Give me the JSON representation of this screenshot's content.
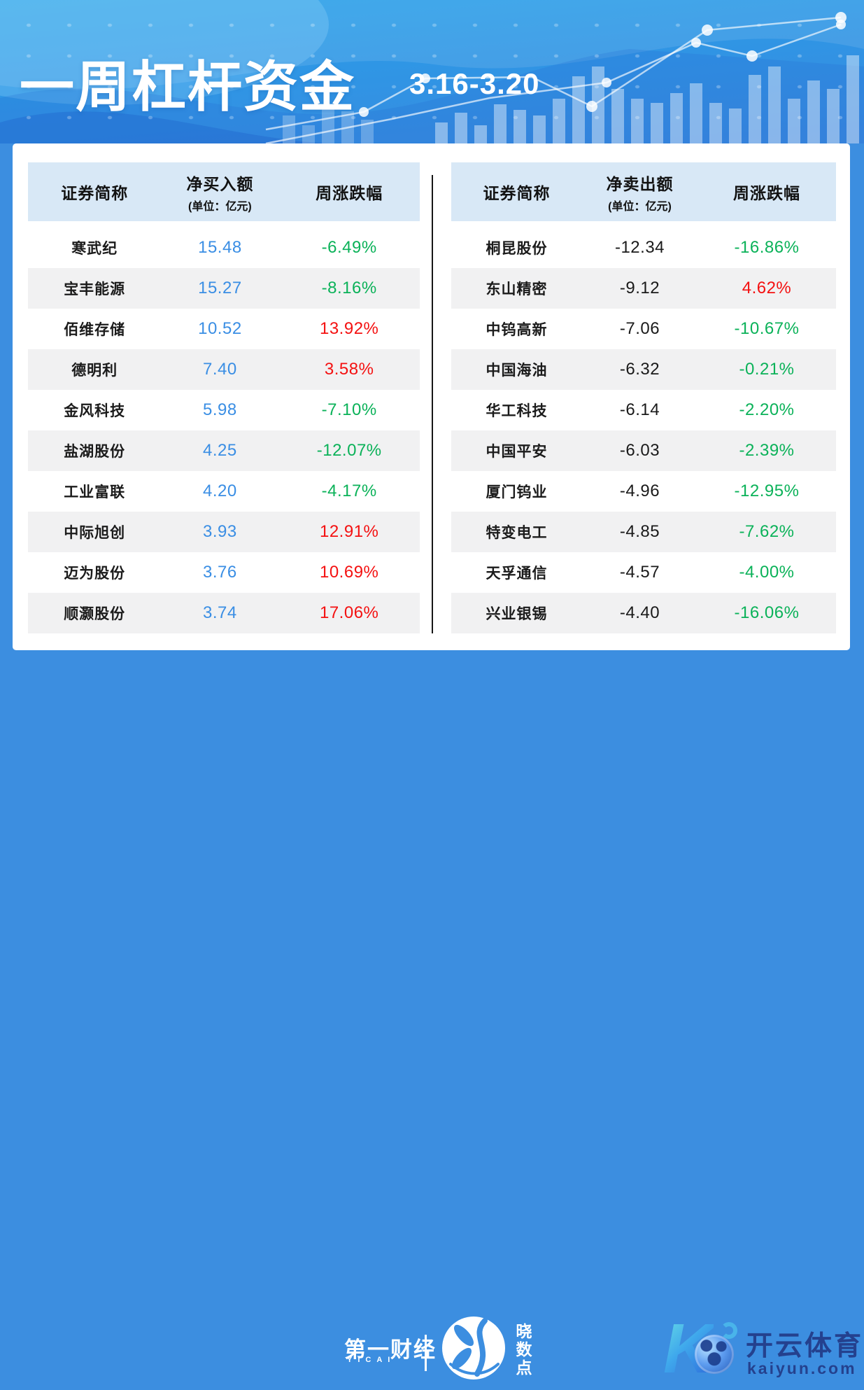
{
  "header": {
    "title": "一周杠杆资金",
    "date_range": "3.16-3.20"
  },
  "tables": {
    "buy": {
      "columns": {
        "name": "证券简称",
        "amount": "净买入额",
        "unit": "(单位：亿元)",
        "change": "周涨跌幅"
      },
      "rows": [
        {
          "name": "寒武纪",
          "amount": "15.48",
          "change": "-6.49%",
          "trend": "down"
        },
        {
          "name": "宝丰能源",
          "amount": "15.27",
          "change": "-8.16%",
          "trend": "down"
        },
        {
          "name": "佰维存储",
          "amount": "10.52",
          "change": "13.92%",
          "trend": "up"
        },
        {
          "name": "德明利",
          "amount": "7.40",
          "change": "3.58%",
          "trend": "up"
        },
        {
          "name": "金风科技",
          "amount": "5.98",
          "change": "-7.10%",
          "trend": "down"
        },
        {
          "name": "盐湖股份",
          "amount": "4.25",
          "change": "-12.07%",
          "trend": "down"
        },
        {
          "name": "工业富联",
          "amount": "4.20",
          "change": "-4.17%",
          "trend": "down"
        },
        {
          "name": "中际旭创",
          "amount": "3.93",
          "change": "12.91%",
          "trend": "up"
        },
        {
          "name": "迈为股份",
          "amount": "3.76",
          "change": "10.69%",
          "trend": "up"
        },
        {
          "name": "顺灏股份",
          "amount": "3.74",
          "change": "17.06%",
          "trend": "up"
        }
      ]
    },
    "sell": {
      "columns": {
        "name": "证券简称",
        "amount": "净卖出额",
        "unit": "(单位：亿元)",
        "change": "周涨跌幅"
      },
      "rows": [
        {
          "name": "桐昆股份",
          "amount": "-12.34",
          "change": "-16.86%",
          "trend": "down"
        },
        {
          "name": "东山精密",
          "amount": "-9.12",
          "change": "4.62%",
          "trend": "up"
        },
        {
          "name": "中钨高新",
          "amount": "-7.06",
          "change": "-10.67%",
          "trend": "down"
        },
        {
          "name": "中国海油",
          "amount": "-6.32",
          "change": "-0.21%",
          "trend": "down"
        },
        {
          "name": "华工科技",
          "amount": "-6.14",
          "change": "-2.20%",
          "trend": "down"
        },
        {
          "name": "中国平安",
          "amount": "-6.03",
          "change": "-2.39%",
          "trend": "down"
        },
        {
          "name": "厦门钨业",
          "amount": "-4.96",
          "change": "-12.95%",
          "trend": "down"
        },
        {
          "name": "特变电工",
          "amount": "-4.85",
          "change": "-7.62%",
          "trend": "down"
        },
        {
          "name": "天孚通信",
          "amount": "-4.57",
          "change": "-4.00%",
          "trend": "down"
        },
        {
          "name": "兴业银锡",
          "amount": "-4.40",
          "change": "-16.06%",
          "trend": "down"
        }
      ]
    }
  },
  "footer": {
    "yicai": {
      "name": "第一财经",
      "latin": "YICAI"
    },
    "xiaoshudian": {
      "chars": [
        "晓",
        "数",
        "点"
      ]
    },
    "kaiyun": {
      "name": "开云体育",
      "domain": "kaiyun.com"
    }
  },
  "colors": {
    "up": "#f41111",
    "down": "#0bb259",
    "amount_buy": "#3a8ee4",
    "amount_sell": "#1a1a1a",
    "header_bg": "#d8e8f6",
    "row_alt_bg": "#f1f1f2",
    "page_blue": "#3c8ee0"
  },
  "chart_data": [
    {
      "type": "table",
      "title": "一周杠杆资金 净买入额 3.16-3.20",
      "columns": [
        "证券简称",
        "净买入额(亿元)",
        "周涨跌幅"
      ],
      "rows": [
        [
          "寒武纪",
          15.48,
          "-6.49%"
        ],
        [
          "宝丰能源",
          15.27,
          "-8.16%"
        ],
        [
          "佰维存储",
          10.52,
          "13.92%"
        ],
        [
          "德明利",
          7.4,
          "3.58%"
        ],
        [
          "金风科技",
          5.98,
          "-7.10%"
        ],
        [
          "盐湖股份",
          4.25,
          "-12.07%"
        ],
        [
          "工业富联",
          4.2,
          "-4.17%"
        ],
        [
          "中际旭创",
          3.93,
          "12.91%"
        ],
        [
          "迈为股份",
          3.76,
          "10.69%"
        ],
        [
          "顺灏股份",
          3.74,
          "17.06%"
        ]
      ]
    },
    {
      "type": "table",
      "title": "一周杠杆资金 净卖出额 3.16-3.20",
      "columns": [
        "证券简称",
        "净卖出额(亿元)",
        "周涨跌幅"
      ],
      "rows": [
        [
          "桐昆股份",
          -12.34,
          "-16.86%"
        ],
        [
          "东山精密",
          -9.12,
          "4.62%"
        ],
        [
          "中钨高新",
          -7.06,
          "-10.67%"
        ],
        [
          "中国海油",
          -6.32,
          "-0.21%"
        ],
        [
          "华工科技",
          -6.14,
          "-2.20%"
        ],
        [
          "中国平安",
          -6.03,
          "-2.39%"
        ],
        [
          "厦门钨业",
          -4.96,
          "-12.95%"
        ],
        [
          "特变电工",
          -4.85,
          "-7.62%"
        ],
        [
          "天孚通信",
          -4.57,
          "-4.00%"
        ],
        [
          "兴业银锡",
          -4.4,
          "-16.06%"
        ]
      ]
    }
  ]
}
